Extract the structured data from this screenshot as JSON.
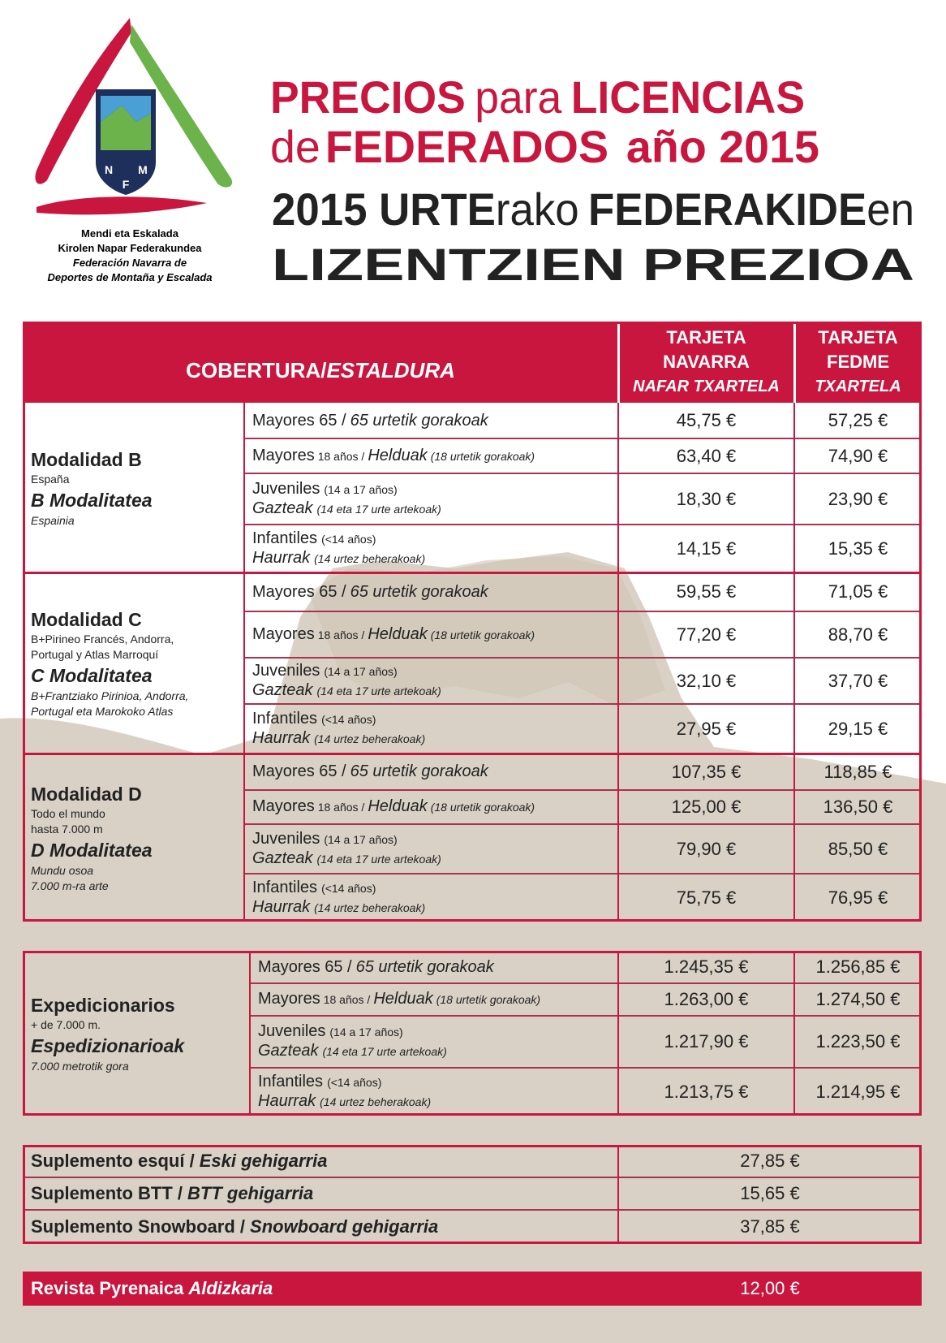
{
  "logo": {
    "letters": [
      "N",
      "F",
      "M"
    ],
    "lines": [
      "Mendi eta Eskalada",
      "Kirolen Napar Federakundea",
      "Federación Navarra de",
      "Deportes de Montaña y Escalada"
    ]
  },
  "title": {
    "lines": [
      [
        "PRECIOS",
        "para",
        "LICENCIAS"
      ],
      [
        "de",
        "FEDERADOS",
        "año 2015"
      ]
    ],
    "lines_eu": [
      [
        "2015 URTE",
        "rako",
        "FEDERAKIDE",
        "en"
      ],
      [
        "LIZENTZIEN PREZIOA"
      ]
    ]
  },
  "table": {
    "header": {
      "coverage": [
        "COBERTURA/",
        "ESTALDURA"
      ],
      "columns": [
        [
          "TARJETA",
          "NAVARRA",
          "NAFAR TXARTELA"
        ],
        [
          "TARJETA",
          "FEDME",
          "TXARTELA"
        ]
      ]
    },
    "groups": [
      {
        "name": "Modalidad B",
        "desc": [
          "España"
        ],
        "name_eu": "B Modalitatea",
        "desc_eu": [
          "Espainia"
        ],
        "rows": [
          {
            "label": [
              "Mayores 65 /",
              "65 urtetik gorakoak"
            ],
            "prices": [
              "45,75 €",
              "57,25 €"
            ]
          },
          {
            "label": [
              "Mayores",
              "18 años /",
              "Helduak",
              "(18 urtetik gorakoak)"
            ],
            "prices": [
              "63,40 €",
              "74,90 €"
            ]
          },
          {
            "label": [
              "Juveniles",
              "(14 a 17 años)",
              "Gazteak",
              "(14 eta 17 urte artekoak)"
            ],
            "prices": [
              "18,30 €",
              "23,90 €"
            ]
          },
          {
            "label": [
              "Infantiles",
              "(<14 años)",
              "Haurrak",
              "(14 urtez beherakoak)"
            ],
            "prices": [
              "14,15 €",
              "15,35 €"
            ]
          }
        ]
      },
      {
        "name": "Modalidad C",
        "desc": [
          "B+Pirineo Francés, Andorra,",
          "Portugal y Atlas Marroquí"
        ],
        "name_eu": "C Modalitatea",
        "desc_eu": [
          "B+Frantziako Pirinioa, Andorra,",
          "Portugal eta Marokoko Atlas"
        ],
        "rows": [
          {
            "label": [
              "Mayores 65 /",
              "65 urtetik gorakoak"
            ],
            "prices": [
              "59,55 €",
              "71,05 €"
            ]
          },
          {
            "label": [
              "Mayores",
              "18 años /",
              "Helduak",
              "(18 urtetik gorakoak)"
            ],
            "prices": [
              "77,20 €",
              "88,70 €"
            ]
          },
          {
            "label": [
              "Juveniles",
              "(14 a 17 años)",
              "Gazteak",
              "(14 eta 17 urte artekoak)"
            ],
            "prices": [
              "32,10 €",
              "37,70 €"
            ]
          },
          {
            "label": [
              "Infantiles",
              "(<14 años)",
              "Haurrak",
              "(14 urtez beherakoak)"
            ],
            "prices": [
              "27,95 €",
              "29,15 €"
            ]
          }
        ]
      },
      {
        "name": "Modalidad D",
        "desc": [
          "Todo el mundo",
          "hasta 7.000 m"
        ],
        "name_eu": "D Modalitatea",
        "desc_eu": [
          "Mundu osoa",
          "7.000 m-ra arte"
        ],
        "rows": [
          {
            "label": [
              "Mayores 65 /",
              "65 urtetik gorakoak"
            ],
            "prices": [
              "107,35 €",
              "118,85 €"
            ]
          },
          {
            "label": [
              "Mayores",
              "18 años /",
              "Helduak",
              "(18 urtetik gorakoak)"
            ],
            "prices": [
              "125,00 €",
              "136,50 €"
            ]
          },
          {
            "label": [
              "Juveniles",
              "(14 a 17 años)",
              "Gazteak",
              "(14 eta 17 urte artekoak)"
            ],
            "prices": [
              "79,90 €",
              "85,50 €"
            ]
          },
          {
            "label": [
              "Infantiles",
              "(<14 años)",
              "Haurrak",
              "(14 urtez beherakoak)"
            ],
            "prices": [
              "75,75 €",
              "76,95 €"
            ]
          }
        ]
      }
    ]
  },
  "expeditions": {
    "name": "Expedicionarios",
    "desc": [
      "+ de 7.000 m."
    ],
    "name_eu": "Espedizionarioak",
    "desc_eu": [
      "7.000 metrotik gora"
    ],
    "rows": [
      {
        "label": [
          "Mayores 65 /",
          "65 urtetik gorakoak"
        ],
        "prices": [
          "1.245,35 €",
          "1.256,85 €"
        ]
      },
      {
        "label": [
          "Mayores",
          "18 años /",
          "Helduak",
          "(18 urtetik gorakoak)"
        ],
        "prices": [
          "1.263,00 €",
          "1.274,50 €"
        ]
      },
      {
        "label": [
          "Juveniles",
          "(14 a 17 años)",
          "Gazteak",
          "(14 eta 17 urte artekoak)"
        ],
        "prices": [
          "1.217,90 €",
          "1.223,50 €"
        ]
      },
      {
        "label": [
          "Infantiles",
          "(<14 años)",
          "Haurrak",
          "(14 urtez beherakoak)"
        ],
        "prices": [
          "1.213,75 €",
          "1.214,95 €"
        ]
      }
    ]
  },
  "supplements": [
    {
      "label": [
        "Suplemento esquí /",
        "Eski gehigarria"
      ],
      "price": "27,85 €"
    },
    {
      "label": [
        "Suplemento BTT /",
        "BTT gehigarria"
      ],
      "price": "15,65 €"
    },
    {
      "label": [
        "Suplemento Snowboard /",
        "Snowboard gehigarria"
      ],
      "price": "37,85 €"
    }
  ],
  "magazine": {
    "label": [
      "Revista Pyrenaica",
      "Aldizkaria"
    ],
    "price": "12,00 €"
  }
}
